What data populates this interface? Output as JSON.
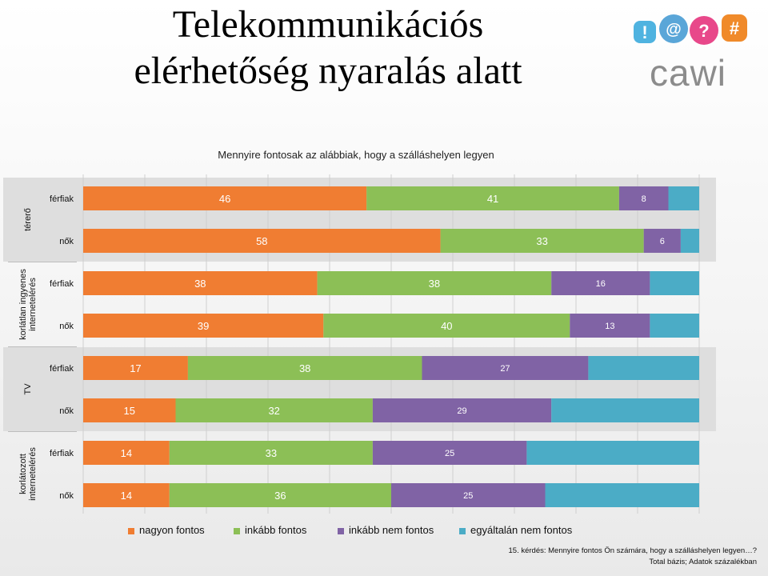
{
  "slide": {
    "title_line1": "Telekommunikációs",
    "title_line2": "elérhetőség nyaralás alatt",
    "logo_text": "cawi",
    "footnote_line1": "15. kérdés: Mennyire fontos Ön számára, hogy a szálláshelyen legyen…?",
    "footnote_line2": "Total bázis; Adatok százalékban"
  },
  "logo_icons": [
    {
      "symbol": "!",
      "color": "#4fb3e0"
    },
    {
      "symbol": "@",
      "color": "#5aa6d8"
    },
    {
      "symbol": "?",
      "color": "#e8488a"
    },
    {
      "symbol": "#",
      "color": "#f08a2a"
    }
  ],
  "chart_data": {
    "type": "bar",
    "orientation": "horizontal",
    "stacked": true,
    "title": "Mennyire fontosak az alábbiak, hogy a szálláshelyen legyen",
    "groups": [
      {
        "label": "térerő",
        "rows": [
          "férfiak",
          "nők"
        ]
      },
      {
        "label": "korlátlan ingyenes internetelérés",
        "rows": [
          "férfiak",
          "nők"
        ]
      },
      {
        "label": "TV",
        "rows": [
          "férfiak",
          "nők"
        ]
      },
      {
        "label": "korlátozott internetelérés",
        "rows": [
          "férfiak",
          "nők"
        ]
      }
    ],
    "series": [
      {
        "name": "nagyon fontos",
        "color": "#f07d32",
        "values": [
          46,
          58,
          38,
          39,
          17,
          15,
          14,
          14
        ],
        "labels": [
          "46",
          "58",
          "38",
          "39",
          "17",
          "15",
          "14",
          "14"
        ]
      },
      {
        "name": "inkább fontos",
        "color": "#8cbf56",
        "values": [
          41,
          33,
          38,
          40,
          38,
          32,
          33,
          36
        ],
        "labels": [
          "41",
          "33",
          "38",
          "40",
          "38",
          "32",
          "33",
          "36"
        ]
      },
      {
        "name": "inkább nem fontos",
        "color": "#8063a5",
        "values": [
          8,
          6,
          16,
          13,
          27,
          29,
          25,
          25
        ],
        "labels": [
          "8",
          "6",
          "16",
          "13",
          "27",
          "29",
          "25",
          "25"
        ]
      },
      {
        "name": "egyáltalán nem fontos",
        "color": "#4bacc6",
        "values": [
          5,
          3,
          8,
          8,
          18,
          24,
          28,
          25
        ],
        "labels": [
          "",
          "",
          "",
          "",
          "",
          "",
          "",
          ""
        ]
      }
    ],
    "xlim": [
      0,
      100
    ],
    "grid": true,
    "highlighted_groups": [
      "térerő",
      "TV"
    ],
    "legend_position": "bottom"
  }
}
